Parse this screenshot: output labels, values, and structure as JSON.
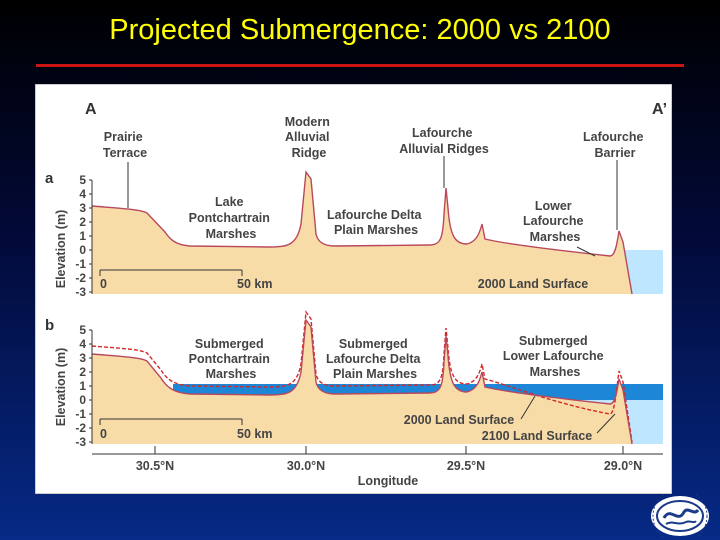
{
  "slide": {
    "title": "Projected Submergence: 2000 vs 2100"
  },
  "figure": {
    "endpoint_left": "A",
    "endpoint_right": "A’",
    "panel_a_letter": "a",
    "panel_b_letter": "b",
    "ylabel": "Elevation (m)",
    "yticks": [
      "5",
      "4",
      "3",
      "2",
      "1",
      "0",
      "-1",
      "-2",
      "-3"
    ],
    "scale_bar": {
      "start": "0",
      "end": "50 km"
    },
    "xlabel": "Longitude",
    "xticks": [
      "30.5°N",
      "30.0°N",
      "29.5°N",
      "29.0°N"
    ],
    "panel_a": {
      "label_prairie_1": "Prairie",
      "label_prairie_2": "Terrace",
      "label_modern_1": "Modern",
      "label_modern_2": "Alluvial",
      "label_modern_3": "Ridge",
      "label_lafridges_1": "Lafourche",
      "label_lafridges_2": "Alluvial Ridges",
      "label_barrier_1": "Lafourche",
      "label_barrier_2": "Barrier",
      "label_lake_1": "Lake",
      "label_lake_2": "Pontchartrain",
      "label_lake_3": "Marshes",
      "label_delta_1": "Lafourche Delta",
      "label_delta_2": "Plain Marshes",
      "label_lower_1": "Lower",
      "label_lower_2": "Lafourche",
      "label_lower_3": "Marshes",
      "surface_label": "2000 Land Surface"
    },
    "panel_b": {
      "label_sub_lake_1": "Submerged",
      "label_sub_lake_2": "Pontchartrain",
      "label_sub_lake_3": "Marshes",
      "label_sub_delta_1": "Submerged",
      "label_sub_delta_2": "Lafourche Delta",
      "label_sub_delta_3": "Plain Marshes",
      "label_sub_lower_1": "Submerged",
      "label_sub_lower_2": "Lower Lafourche",
      "label_sub_lower_3": "Marshes",
      "surface_2000_label": "2000 Land Surface",
      "surface_2100_label": "2100 Land Surface"
    },
    "colors": {
      "land": "#f8dca8",
      "outline": "#b8485c",
      "water_light": "#bfe6ff",
      "water_band": "#1e86d6",
      "future_line": "#d42828"
    }
  }
}
